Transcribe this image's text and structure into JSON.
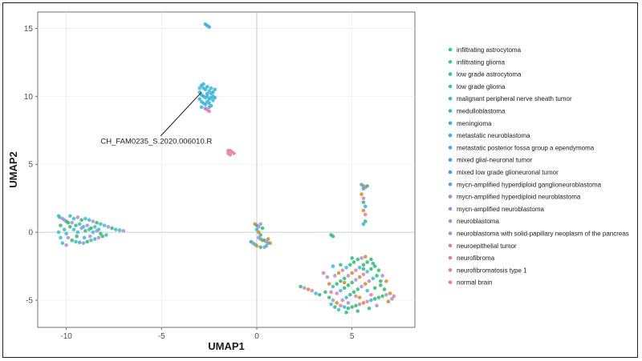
{
  "chart_data": {
    "type": "scatter",
    "title": "",
    "xlabel": "UMAP1",
    "ylabel": "UMAP2",
    "xlim": [
      -11.5,
      8.3
    ],
    "ylim": [
      -7,
      16.2
    ],
    "xticks": [
      -10,
      -5,
      0,
      5
    ],
    "yticks": [
      -5,
      0,
      5,
      10,
      15
    ],
    "xtick_labels": [
      "-10",
      "-5",
      "0",
      "5"
    ],
    "ytick_labels": [
      "-5",
      "0",
      "5",
      "10",
      "15"
    ],
    "grid": true,
    "legend_position": "right",
    "annotation": {
      "label": "CH_FAM0235_S.2020.006010.R",
      "point": [
        -2.9,
        10.3
      ],
      "label_at": [
        -8.2,
        6.5
      ]
    },
    "series": [
      {
        "name": "infiltrating astrocytoma",
        "color": "#3fbfb0"
      },
      {
        "name": "infiltrating glioma",
        "color": "#3ebfb5"
      },
      {
        "name": "low grade astrocytoma",
        "color": "#3dbfba"
      },
      {
        "name": "low grade glioma",
        "color": "#3cbfc0"
      },
      {
        "name": "malignant peripheral nerve sheath tumor",
        "color": "#3abdc6"
      },
      {
        "name": "medulloblastoma",
        "color": "#3ab9cc"
      },
      {
        "name": "meningioma",
        "color": "#39b5d2"
      },
      {
        "name": "metastatic neuroblastoma",
        "color": "#3ab0d8"
      },
      {
        "name": "metastatic posterior fossa group a ependymoma",
        "color": "#3aaadd"
      },
      {
        "name": "mixed glial-neuronal tumor",
        "color": "#3ca4e0"
      },
      {
        "name": "mixed low grade glioneuronal tumor",
        "color": "#3f9ee3"
      },
      {
        "name": "mycn-amplified hyperdiploid ganglioneuroblastoma",
        "color": "#5aa0dd"
      },
      {
        "name": "mycn-amplified hyperdiploid neuroblastoma",
        "color": "#7b9bd6"
      },
      {
        "name": "mycn-amplified neuroblastoma",
        "color": "#9793d0"
      },
      {
        "name": "neuroblastoma",
        "color": "#ad8dcf"
      },
      {
        "name": "neuroblastoma with solid-papillary neoplasm of the pancreas",
        "color": "#bf87cc"
      },
      {
        "name": "neuroepithelial tumor",
        "color": "#cd82c4"
      },
      {
        "name": "neurofibroma",
        "color": "#d77fbb"
      },
      {
        "name": "neurofibromatosis type 1",
        "color": "#de7fae"
      },
      {
        "name": "normal brain",
        "color": "#e3809f"
      }
    ],
    "clusters": [
      {
        "id": "left-band",
        "color": "#3bb8d8",
        "mix": [
          "#3bb8d8",
          "#a98fd0",
          "#35b779",
          "#3fbfb0"
        ],
        "points": [
          [
            -10.4,
            1.2
          ],
          [
            -10.2,
            1.0
          ],
          [
            -10.0,
            0.8
          ],
          [
            -9.8,
            1.2
          ],
          [
            -9.6,
            1.0
          ],
          [
            -9.4,
            1.1
          ],
          [
            -9.2,
            0.9
          ],
          [
            -9.0,
            1.0
          ],
          [
            -8.8,
            0.9
          ],
          [
            -8.6,
            0.8
          ],
          [
            -8.4,
            0.7
          ],
          [
            -8.2,
            0.6
          ],
          [
            -8.0,
            0.5
          ],
          [
            -7.8,
            0.4
          ],
          [
            -7.6,
            0.3
          ],
          [
            -7.4,
            0.2
          ],
          [
            -7.2,
            0.15
          ],
          [
            -7.0,
            0.1
          ],
          [
            -10.3,
            0.5
          ],
          [
            -10.1,
            0.2
          ],
          [
            -10.0,
            -0.1
          ],
          [
            -9.9,
            -0.4
          ],
          [
            -9.7,
            -0.6
          ],
          [
            -9.5,
            -0.7
          ],
          [
            -9.3,
            -0.75
          ],
          [
            -9.1,
            -0.8
          ],
          [
            -8.9,
            -0.7
          ],
          [
            -8.7,
            -0.6
          ],
          [
            -8.5,
            -0.5
          ],
          [
            -8.3,
            -0.4
          ],
          [
            -8.1,
            -0.3
          ],
          [
            -7.9,
            -0.2
          ],
          [
            -10.2,
            -0.8
          ],
          [
            -10.0,
            -0.95
          ],
          [
            -9.8,
            0.4
          ],
          [
            -9.6,
            0.2
          ],
          [
            -9.4,
            0.0
          ],
          [
            -9.2,
            0.3
          ],
          [
            -9.0,
            0.1
          ],
          [
            -8.8,
            0.2
          ],
          [
            -8.6,
            0.0
          ],
          [
            -8.4,
            0.1
          ],
          [
            -8.2,
            -0.1
          ],
          [
            -10.4,
            0.0
          ],
          [
            -10.3,
            -0.4
          ],
          [
            -9.7,
            0.7
          ],
          [
            -9.5,
            0.5
          ],
          [
            -9.3,
            0.6
          ],
          [
            -9.1,
            0.4
          ],
          [
            -8.9,
            0.5
          ],
          [
            -8.7,
            0.3
          ],
          [
            -8.5,
            0.4
          ],
          [
            -8.3,
            0.2
          ],
          [
            -10.1,
            0.9
          ],
          [
            -9.9,
            0.7
          ],
          [
            -10.35,
            1.1
          ],
          [
            -9.05,
            -0.4
          ],
          [
            -8.75,
            -0.3
          ],
          [
            -9.45,
            -0.3
          ]
        ]
      },
      {
        "id": "upper-cluster",
        "color": "#3aaadd",
        "mix": [
          "#3aaadd",
          "#3ab9cc",
          "#39b5d2"
        ],
        "points": [
          [
            -2.9,
            10.8
          ],
          [
            -2.8,
            10.6
          ],
          [
            -2.7,
            10.5
          ],
          [
            -2.6,
            10.7
          ],
          [
            -2.5,
            10.4
          ],
          [
            -2.4,
            10.6
          ],
          [
            -2.3,
            10.3
          ],
          [
            -3.0,
            10.3
          ],
          [
            -2.9,
            10.1
          ],
          [
            -2.8,
            10.0
          ],
          [
            -2.7,
            9.9
          ],
          [
            -2.6,
            10.0
          ],
          [
            -2.5,
            9.8
          ],
          [
            -2.4,
            9.9
          ],
          [
            -2.3,
            10.0
          ],
          [
            -3.0,
            9.8
          ],
          [
            -2.9,
            9.6
          ],
          [
            -2.8,
            9.5
          ],
          [
            -2.7,
            9.4
          ],
          [
            -2.6,
            9.6
          ],
          [
            -2.5,
            9.5
          ],
          [
            -2.4,
            9.3
          ],
          [
            -2.3,
            9.7
          ],
          [
            -2.9,
            9.2
          ],
          [
            -2.7,
            9.1
          ],
          [
            -2.5,
            9.2
          ],
          [
            -2.8,
            10.9
          ],
          [
            -2.6,
            10.2
          ],
          [
            -2.4,
            10.2
          ],
          [
            -2.2,
            10.5
          ],
          [
            -2.2,
            9.9
          ],
          [
            -3.0,
            10.6
          ]
        ]
      },
      {
        "id": "upper-pink",
        "color": "#d77fbb",
        "mix": [
          "#d77fbb"
        ],
        "points": [
          [
            -2.6,
            9.0
          ],
          [
            -2.5,
            8.9
          ],
          [
            -2.7,
            9.1
          ]
        ]
      },
      {
        "id": "top-isolate",
        "color": "#3aaadd",
        "mix": [
          "#3aaadd"
        ],
        "points": [
          [
            -2.7,
            15.3
          ],
          [
            -2.6,
            15.2
          ],
          [
            -2.5,
            15.1
          ]
        ]
      },
      {
        "id": "pink-small",
        "color": "#e3809f",
        "mix": [
          "#e3809f",
          "#de7fae"
        ],
        "points": [
          [
            -1.5,
            5.8
          ],
          [
            -1.4,
            6.0
          ],
          [
            -1.3,
            5.9
          ],
          [
            -1.4,
            5.7
          ],
          [
            -1.2,
            5.8
          ],
          [
            -1.5,
            6.0
          ]
        ]
      },
      {
        "id": "center",
        "color": "#d08b2e",
        "mix": [
          "#d08b2e",
          "#35b779",
          "#a98fd0",
          "#3bb8d8"
        ],
        "points": [
          [
            -0.1,
            0.6
          ],
          [
            0.0,
            0.5
          ],
          [
            0.1,
            0.4
          ],
          [
            0.0,
            0.2
          ],
          [
            0.1,
            0.0
          ],
          [
            0.2,
            -0.2
          ],
          [
            0.1,
            -0.4
          ],
          [
            0.2,
            -0.5
          ],
          [
            0.3,
            -0.6
          ],
          [
            0.4,
            -0.6
          ],
          [
            0.5,
            -0.7
          ],
          [
            0.6,
            -0.8
          ],
          [
            0.7,
            -0.8
          ],
          [
            -0.3,
            -0.7
          ],
          [
            -0.2,
            -0.8
          ],
          [
            -0.1,
            -0.9
          ],
          [
            0.0,
            -1.0
          ],
          [
            0.2,
            -1.1
          ],
          [
            0.4,
            -1.1
          ],
          [
            0.5,
            -1.0
          ],
          [
            0.6,
            -0.5
          ],
          [
            0.3,
            0.3
          ],
          [
            0.2,
            0.6
          ]
        ]
      },
      {
        "id": "right-top",
        "color": "#3aaadd",
        "mix": [
          "#3aaadd",
          "#d08b2e",
          "#de7fae",
          "#35b779"
        ],
        "points": [
          [
            5.5,
            3.5
          ],
          [
            5.6,
            3.4
          ],
          [
            5.7,
            3.3
          ],
          [
            5.8,
            3.4
          ],
          [
            5.6,
            3.2
          ],
          [
            5.5,
            2.8
          ],
          [
            5.6,
            2.5
          ],
          [
            5.6,
            2.2
          ],
          [
            5.7,
            1.9
          ],
          [
            5.6,
            1.6
          ],
          [
            5.7,
            1.3
          ],
          [
            5.7,
            0.8
          ],
          [
            5.6,
            0.6
          ]
        ]
      },
      {
        "id": "right-large",
        "color": "#35b779",
        "mix": [
          "#35b779",
          "#35b779",
          "#35b779",
          "#a98fd0",
          "#d08b2e",
          "#de7fae",
          "#3bb8d8"
        ],
        "points": [
          [
            3.9,
            -0.2
          ],
          [
            4.0,
            -0.3
          ],
          [
            2.3,
            -4.0
          ],
          [
            2.5,
            -4.1
          ],
          [
            2.7,
            -4.2
          ],
          [
            2.9,
            -4.3
          ],
          [
            3.1,
            -4.5
          ],
          [
            3.3,
            -4.6
          ],
          [
            3.6,
            -4.4
          ],
          [
            3.8,
            -4.8
          ],
          [
            4.0,
            -5.0
          ],
          [
            4.2,
            -5.2
          ],
          [
            4.4,
            -5.4
          ],
          [
            4.6,
            -5.5
          ],
          [
            4.8,
            -5.6
          ],
          [
            5.0,
            -5.5
          ],
          [
            5.2,
            -5.4
          ],
          [
            5.4,
            -5.3
          ],
          [
            5.6,
            -5.2
          ],
          [
            5.8,
            -5.1
          ],
          [
            6.0,
            -5.0
          ],
          [
            6.2,
            -4.9
          ],
          [
            6.4,
            -4.8
          ],
          [
            6.6,
            -4.7
          ],
          [
            6.8,
            -4.6
          ],
          [
            7.0,
            -4.5
          ],
          [
            7.2,
            -4.7
          ],
          [
            4.0,
            -4.0
          ],
          [
            4.2,
            -3.8
          ],
          [
            4.4,
            -3.6
          ],
          [
            4.6,
            -3.4
          ],
          [
            4.8,
            -3.2
          ],
          [
            5.0,
            -3.0
          ],
          [
            5.2,
            -2.8
          ],
          [
            5.4,
            -2.6
          ],
          [
            5.6,
            -2.4
          ],
          [
            5.8,
            -2.2
          ],
          [
            6.0,
            -2.0
          ],
          [
            4.1,
            -3.2
          ],
          [
            4.3,
            -3.0
          ],
          [
            4.5,
            -2.8
          ],
          [
            4.7,
            -2.6
          ],
          [
            4.9,
            -2.4
          ],
          [
            5.1,
            -2.2
          ],
          [
            5.3,
            -2.0
          ],
          [
            5.5,
            -1.9
          ],
          [
            5.7,
            -1.8
          ],
          [
            4.2,
            -4.5
          ],
          [
            4.4,
            -4.3
          ],
          [
            4.6,
            -4.1
          ],
          [
            4.8,
            -3.9
          ],
          [
            5.0,
            -3.7
          ],
          [
            5.2,
            -3.5
          ],
          [
            5.4,
            -3.3
          ],
          [
            5.6,
            -3.1
          ],
          [
            5.8,
            -2.9
          ],
          [
            6.0,
            -2.7
          ],
          [
            6.2,
            -2.5
          ],
          [
            6.4,
            -2.8
          ],
          [
            6.6,
            -3.2
          ],
          [
            6.8,
            -3.6
          ],
          [
            4.5,
            -5.0
          ],
          [
            4.7,
            -4.8
          ],
          [
            4.9,
            -4.6
          ],
          [
            5.1,
            -4.4
          ],
          [
            5.3,
            -4.2
          ],
          [
            5.5,
            -4.0
          ],
          [
            5.7,
            -3.8
          ],
          [
            5.9,
            -3.6
          ],
          [
            6.1,
            -3.4
          ],
          [
            6.3,
            -3.2
          ],
          [
            6.5,
            -3.9
          ],
          [
            6.7,
            -4.2
          ],
          [
            3.7,
            -3.3
          ],
          [
            3.8,
            -3.8
          ],
          [
            3.9,
            -4.4
          ],
          [
            4.3,
            -5.7
          ],
          [
            4.7,
            -5.9
          ],
          [
            5.3,
            -5.8
          ],
          [
            5.9,
            -5.6
          ],
          [
            6.3,
            -5.4
          ],
          [
            6.9,
            -5.1
          ],
          [
            3.5,
            -3.0
          ],
          [
            4.0,
            -2.5
          ],
          [
            5.0,
            -1.9
          ],
          [
            6.1,
            -2.3
          ],
          [
            6.5,
            -3.6
          ],
          [
            7.1,
            -4.9
          ],
          [
            4.6,
            -3.7
          ],
          [
            5.2,
            -4.7
          ],
          [
            5.8,
            -4.3
          ],
          [
            6.2,
            -4.1
          ],
          [
            4.4,
            -2.4
          ],
          [
            5.6,
            -2.7
          ],
          [
            4.8,
            -5.2
          ],
          [
            5.4,
            -4.8
          ],
          [
            6.0,
            -4.6
          ],
          [
            3.9,
            -5.3
          ],
          [
            4.1,
            -5.5
          ]
        ]
      }
    ]
  }
}
